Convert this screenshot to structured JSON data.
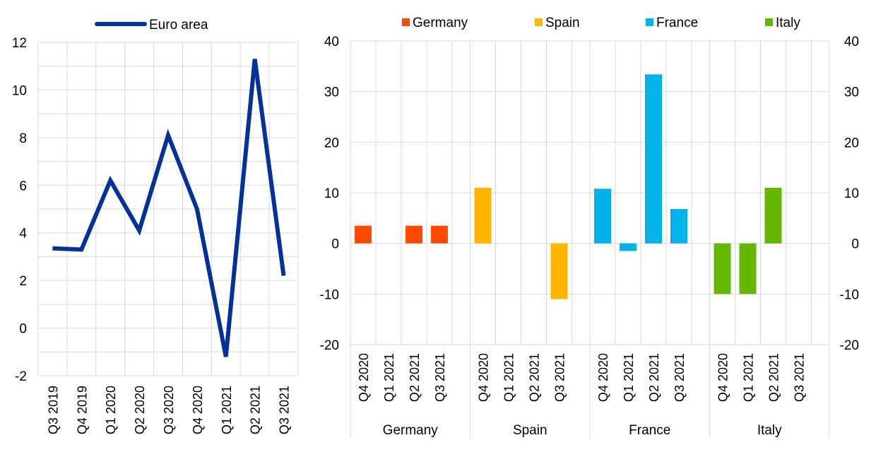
{
  "chart_data": [
    {
      "type": "line",
      "title": "",
      "xlabel": "",
      "ylabel": "",
      "x": [
        "Q3 2019",
        "Q4 2019",
        "Q1 2020",
        "Q2 2020",
        "Q3 2020",
        "Q4 2020",
        "Q1 2021",
        "Q2 2021",
        "Q3 2021"
      ],
      "series": [
        {
          "name": "Euro area",
          "values": [
            3.35,
            3.3,
            6.2,
            4.1,
            8.1,
            5.0,
            -1.2,
            11.3,
            2.2
          ],
          "color": "#003299"
        }
      ],
      "ylim": [
        -2,
        12
      ],
      "yticks": [
        -2,
        0,
        2,
        4,
        6,
        8,
        10,
        12
      ],
      "grid": true,
      "legend": "top"
    },
    {
      "type": "bar",
      "title": "",
      "xlabel": "",
      "ylabel": "",
      "categories": [
        "Q4 2020",
        "Q1 2021",
        "Q2 2021",
        "Q3 2021"
      ],
      "groups": [
        {
          "name": "Germany",
          "color": "#ff4b00",
          "values": [
            3.5,
            null,
            3.5,
            3.5
          ]
        },
        {
          "name": "Spain",
          "color": "#ffb400",
          "values": [
            11.0,
            null,
            null,
            -11.0
          ]
        },
        {
          "name": "France",
          "color": "#00b1ea",
          "values": [
            10.8,
            -1.5,
            33.4,
            6.8
          ]
        },
        {
          "name": "Italy",
          "color": "#65b800",
          "values": [
            -10.0,
            -10.0,
            11.0,
            null
          ]
        }
      ],
      "ylim": [
        -20,
        40
      ],
      "yticks": [
        -20,
        -10,
        0,
        10,
        20,
        30,
        40
      ],
      "secondary_axis": true,
      "grid": true,
      "legend": "top"
    }
  ]
}
